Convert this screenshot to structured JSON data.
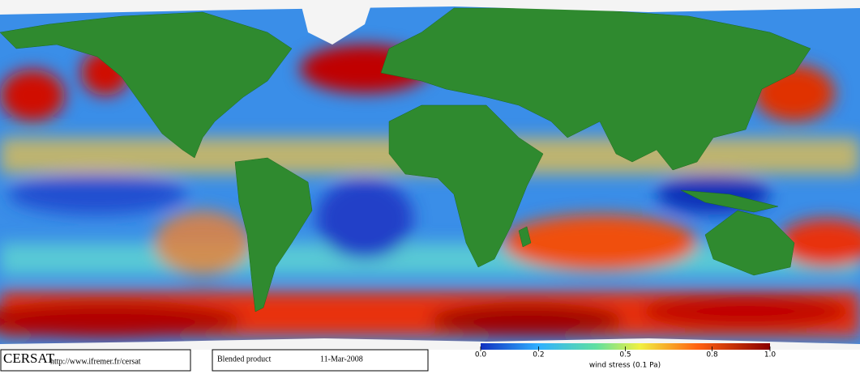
{
  "map": {
    "credit": "CERSAT",
    "url": "http://www.ifremer.fr/cersat",
    "product": "Blended product",
    "date": "11-Mar-2008"
  },
  "colorbar": {
    "label": "wind stress (0.1 Pa)",
    "lim": [
      0,
      1
    ],
    "ticks": [
      {
        "value": 0,
        "label": "0.0"
      },
      0.2,
      0.5,
      0.8,
      {
        "value": 1,
        "label": "1.0"
      }
    ]
  }
}
